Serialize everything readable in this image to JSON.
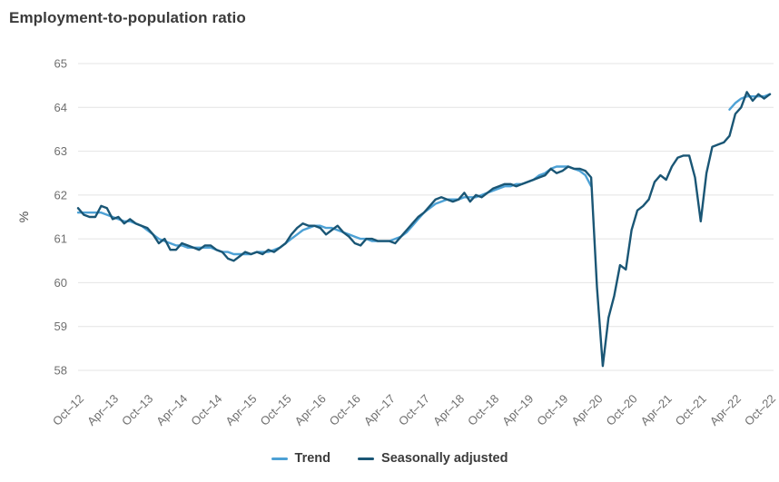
{
  "chart_data": {
    "type": "line",
    "title": "Employment-to-population ratio",
    "xlabel": "",
    "ylabel": "%",
    "ylim": [
      58,
      65
    ],
    "y_ticks": [
      58,
      59,
      60,
      61,
      62,
      63,
      64,
      65
    ],
    "grid": "horizontal",
    "legend_position": "bottom",
    "x_tick_labels": [
      "Oct–12",
      "Apr–13",
      "Oct–13",
      "Apr–14",
      "Oct–14",
      "Apr–15",
      "Oct–15",
      "Apr–16",
      "Oct–16",
      "Apr–17",
      "Oct–17",
      "Apr–18",
      "Oct–18",
      "Apr–19",
      "Oct–19",
      "Apr–20",
      "Oct–20",
      "Apr–21",
      "Oct–21",
      "Apr–22",
      "Oct–22"
    ],
    "x_start": "Oct-2012",
    "x_end": "Oct-2022",
    "x_frequency": "monthly",
    "series": [
      {
        "name": "Trend",
        "color": "#4da1d5",
        "values": [
          61.6,
          61.6,
          61.6,
          61.6,
          61.6,
          61.55,
          61.5,
          61.45,
          61.4,
          61.4,
          61.35,
          61.3,
          61.2,
          61.1,
          61.0,
          60.95,
          60.9,
          60.85,
          60.85,
          60.8,
          60.8,
          60.8,
          60.8,
          60.8,
          60.75,
          60.7,
          60.7,
          60.65,
          60.65,
          60.65,
          60.65,
          60.7,
          60.7,
          60.7,
          60.75,
          60.8,
          60.9,
          61.0,
          61.1,
          61.2,
          61.25,
          61.3,
          61.3,
          61.25,
          61.25,
          61.2,
          61.15,
          61.1,
          61.05,
          61.0,
          61.0,
          60.95,
          60.95,
          60.95,
          60.95,
          61.0,
          61.05,
          61.15,
          61.3,
          61.45,
          61.6,
          61.7,
          61.8,
          61.85,
          61.9,
          61.9,
          61.9,
          61.95,
          61.95,
          61.95,
          62.0,
          62.05,
          62.1,
          62.15,
          62.2,
          62.2,
          62.25,
          62.25,
          62.3,
          62.35,
          62.45,
          62.5,
          62.6,
          62.65,
          62.65,
          62.65,
          62.6,
          62.55,
          62.45,
          62.2,
          null,
          null,
          null,
          null,
          null,
          null,
          null,
          null,
          null,
          null,
          null,
          null,
          null,
          null,
          null,
          null,
          null,
          null,
          null,
          null,
          null,
          null,
          null,
          63.95,
          64.1,
          64.2,
          64.25,
          64.25,
          64.25,
          64.25,
          64.3
        ]
      },
      {
        "name": "Seasonally adjusted",
        "color": "#1a5675",
        "values": [
          61.7,
          61.55,
          61.5,
          61.5,
          61.75,
          61.7,
          61.45,
          61.5,
          61.35,
          61.45,
          61.35,
          61.3,
          61.25,
          61.1,
          60.9,
          61.0,
          60.75,
          60.75,
          60.9,
          60.85,
          60.8,
          60.75,
          60.85,
          60.85,
          60.75,
          60.7,
          60.55,
          60.5,
          60.6,
          60.7,
          60.65,
          60.7,
          60.65,
          60.75,
          60.7,
          60.8,
          60.9,
          61.1,
          61.25,
          61.35,
          61.3,
          61.3,
          61.25,
          61.1,
          61.2,
          61.3,
          61.15,
          61.05,
          60.9,
          60.85,
          61.0,
          61.0,
          60.95,
          60.95,
          60.95,
          60.9,
          61.05,
          61.2,
          61.35,
          61.5,
          61.6,
          61.75,
          61.9,
          61.95,
          61.9,
          61.85,
          61.9,
          62.05,
          61.85,
          62.0,
          61.95,
          62.05,
          62.15,
          62.2,
          62.25,
          62.25,
          62.2,
          62.25,
          62.3,
          62.35,
          62.4,
          62.45,
          62.6,
          62.5,
          62.55,
          62.65,
          62.6,
          62.6,
          62.55,
          62.4,
          59.9,
          58.1,
          59.2,
          59.7,
          60.4,
          60.3,
          61.2,
          61.65,
          61.75,
          61.9,
          62.3,
          62.45,
          62.35,
          62.65,
          62.85,
          62.9,
          62.9,
          62.4,
          61.4,
          62.5,
          63.1,
          63.15,
          63.2,
          63.35,
          63.85,
          64.0,
          64.35,
          64.15,
          64.3,
          64.2,
          64.3
        ]
      }
    ]
  },
  "legend": {
    "items": [
      "Trend",
      "Seasonally adjusted"
    ]
  }
}
